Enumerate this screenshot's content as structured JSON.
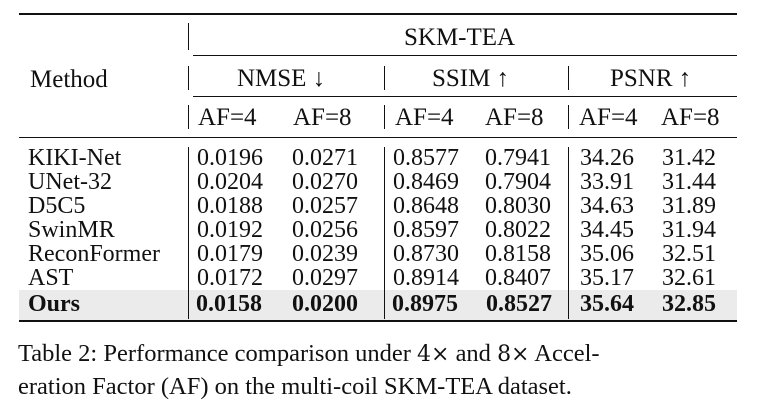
{
  "table": {
    "dataset_header": "SKM-TEA",
    "method_header": "Method",
    "metric_groups": [
      "NMSE ↓",
      "SSIM ↑",
      "PSNR ↑"
    ],
    "af_headers": [
      "AF=4",
      "AF=8",
      "AF=4",
      "AF=8",
      "AF=4",
      "AF=8"
    ],
    "rows": [
      {
        "method": "KIKI-Net",
        "values": [
          "0.0196",
          "0.0271",
          "0.8577",
          "0.7941",
          "34.26",
          "31.42"
        ]
      },
      {
        "method": "UNet-32",
        "values": [
          "0.0204",
          "0.0270",
          "0.8469",
          "0.7904",
          "33.91",
          "31.44"
        ]
      },
      {
        "method": "D5C5",
        "values": [
          "0.0188",
          "0.0257",
          "0.8648",
          "0.8030",
          "34.63",
          "31.89"
        ]
      },
      {
        "method": "SwinMR",
        "values": [
          "0.0192",
          "0.0256",
          "0.8597",
          "0.8022",
          "34.45",
          "31.94"
        ]
      },
      {
        "method": "ReconFormer",
        "values": [
          "0.0179",
          "0.0239",
          "0.8730",
          "0.8158",
          "35.06",
          "32.51"
        ]
      },
      {
        "method": "AST",
        "values": [
          "0.0172",
          "0.0297",
          "0.8914",
          "0.8407",
          "35.17",
          "32.61"
        ]
      },
      {
        "method": "Ours",
        "values": [
          "0.0158",
          "0.0200",
          "0.8975",
          "0.8527",
          "35.64",
          "32.85"
        ]
      }
    ]
  },
  "caption": {
    "label": "Table 2:",
    "text_a": "Performance comparison under",
    "math_a": "4×",
    "text_b": "and",
    "math_b": "8×",
    "text_c": "Accel-",
    "text_d": "eration Factor (AF) on the multi-coil SKM-TEA dataset."
  }
}
